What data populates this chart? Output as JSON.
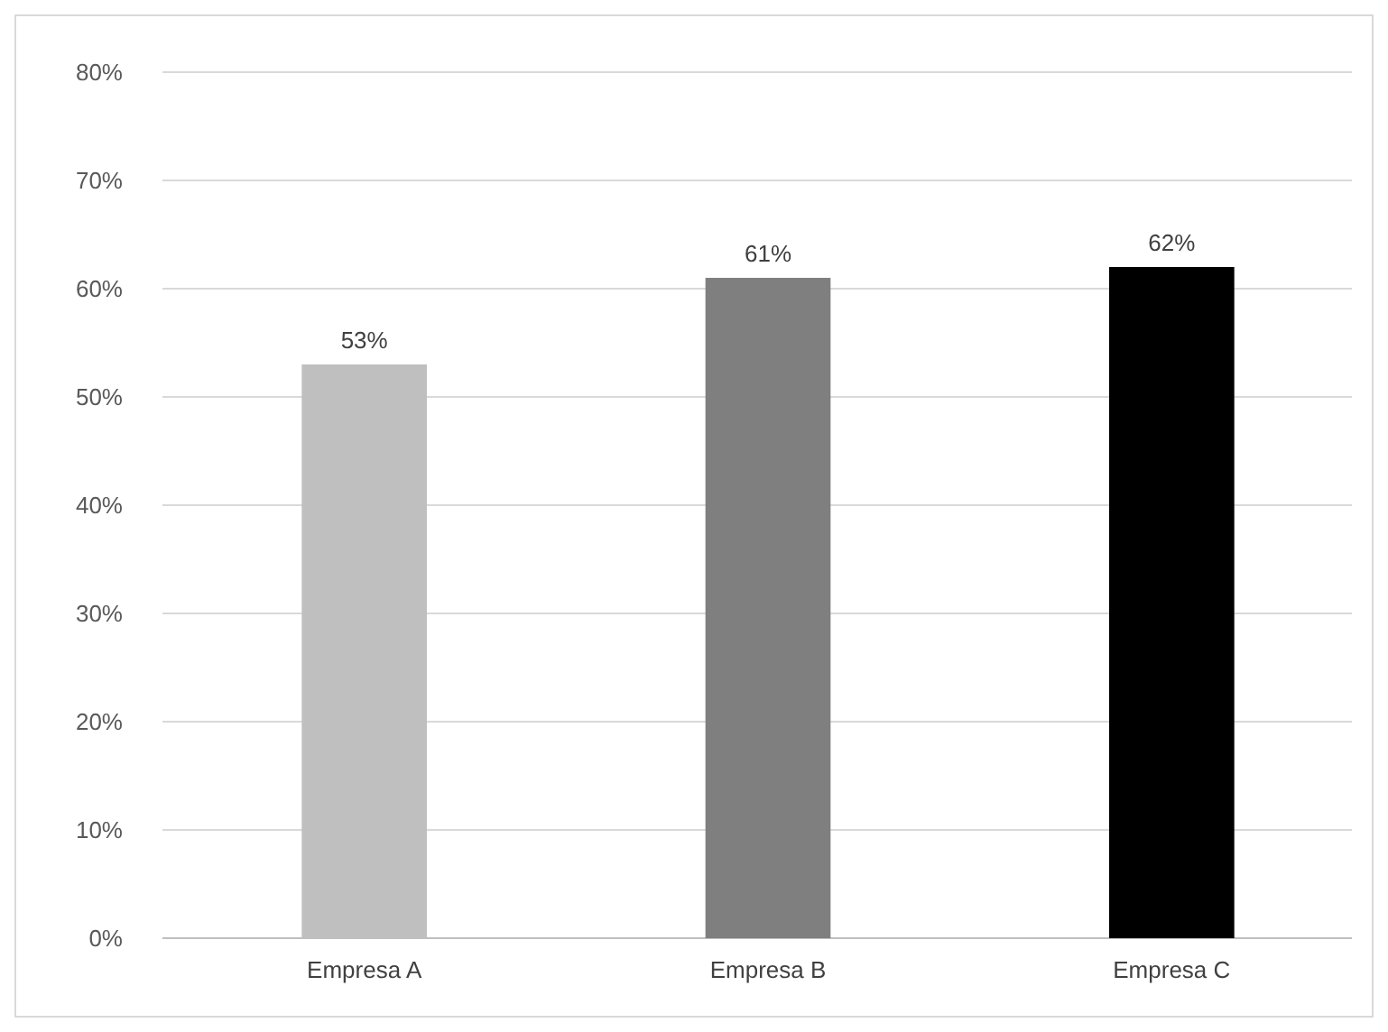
{
  "chart_data": {
    "type": "bar",
    "categories": [
      "Empresa A",
      "Empresa B",
      "Empresa C"
    ],
    "values": [
      53,
      61,
      62
    ],
    "colors": [
      "#bfbfbf",
      "#7f7f7f",
      "#000000"
    ],
    "value_labels": [
      "53%",
      "61%",
      "62%"
    ],
    "ylim": [
      0,
      80
    ],
    "yticks": [
      {
        "value": 0,
        "label": "0%"
      },
      {
        "value": 10,
        "label": "10%"
      },
      {
        "value": 20,
        "label": "20%"
      },
      {
        "value": 30,
        "label": "30%"
      },
      {
        "value": 40,
        "label": "40%"
      },
      {
        "value": 50,
        "label": "50%"
      },
      {
        "value": 60,
        "label": "60%"
      },
      {
        "value": 70,
        "label": "70%"
      },
      {
        "value": 80,
        "label": "80%"
      }
    ],
    "grid": "y"
  }
}
